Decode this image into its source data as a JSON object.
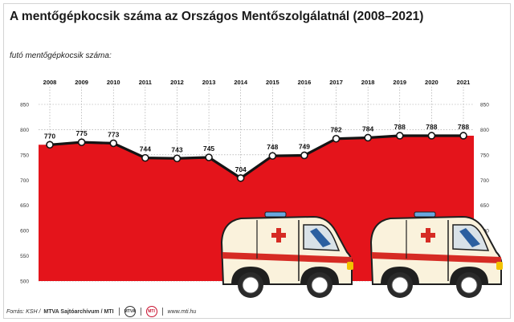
{
  "title": "A mentőgépkocsik száma az Országos Mentőszolgálatnál (2008–2021)",
  "subtitle": "futó mentőgépkocsik száma:",
  "footer": {
    "source": "Forrás: KSH /",
    "credit": "MTVA Sajtóarchívum / MTI",
    "website": "www.mti.hu",
    "logo1": "MTVA",
    "logo2": "MTI"
  },
  "colors": {
    "area": "#e4141b",
    "line": "#141414",
    "marker_fill": "#ffffff"
  },
  "chart_data": {
    "type": "area",
    "title": "A mentőgépkocsik száma az Országos Mentőszolgálatnál (2008–2021)",
    "ylabel": "futó mentőgépkocsik száma:",
    "x": [
      "2008",
      "2009",
      "2010",
      "2011",
      "2012",
      "2013",
      "2014",
      "2015",
      "2016",
      "2017",
      "2018",
      "2019",
      "2020",
      "2021"
    ],
    "values": [
      770,
      775,
      773,
      744,
      743,
      745,
      704,
      748,
      749,
      782,
      784,
      788,
      788,
      788
    ],
    "ylim": [
      500,
      850
    ],
    "yticks": [
      500,
      550,
      600,
      650,
      700,
      750,
      800,
      850
    ],
    "grid": true,
    "x_axis_position": "top",
    "y_axis": "both sides"
  }
}
